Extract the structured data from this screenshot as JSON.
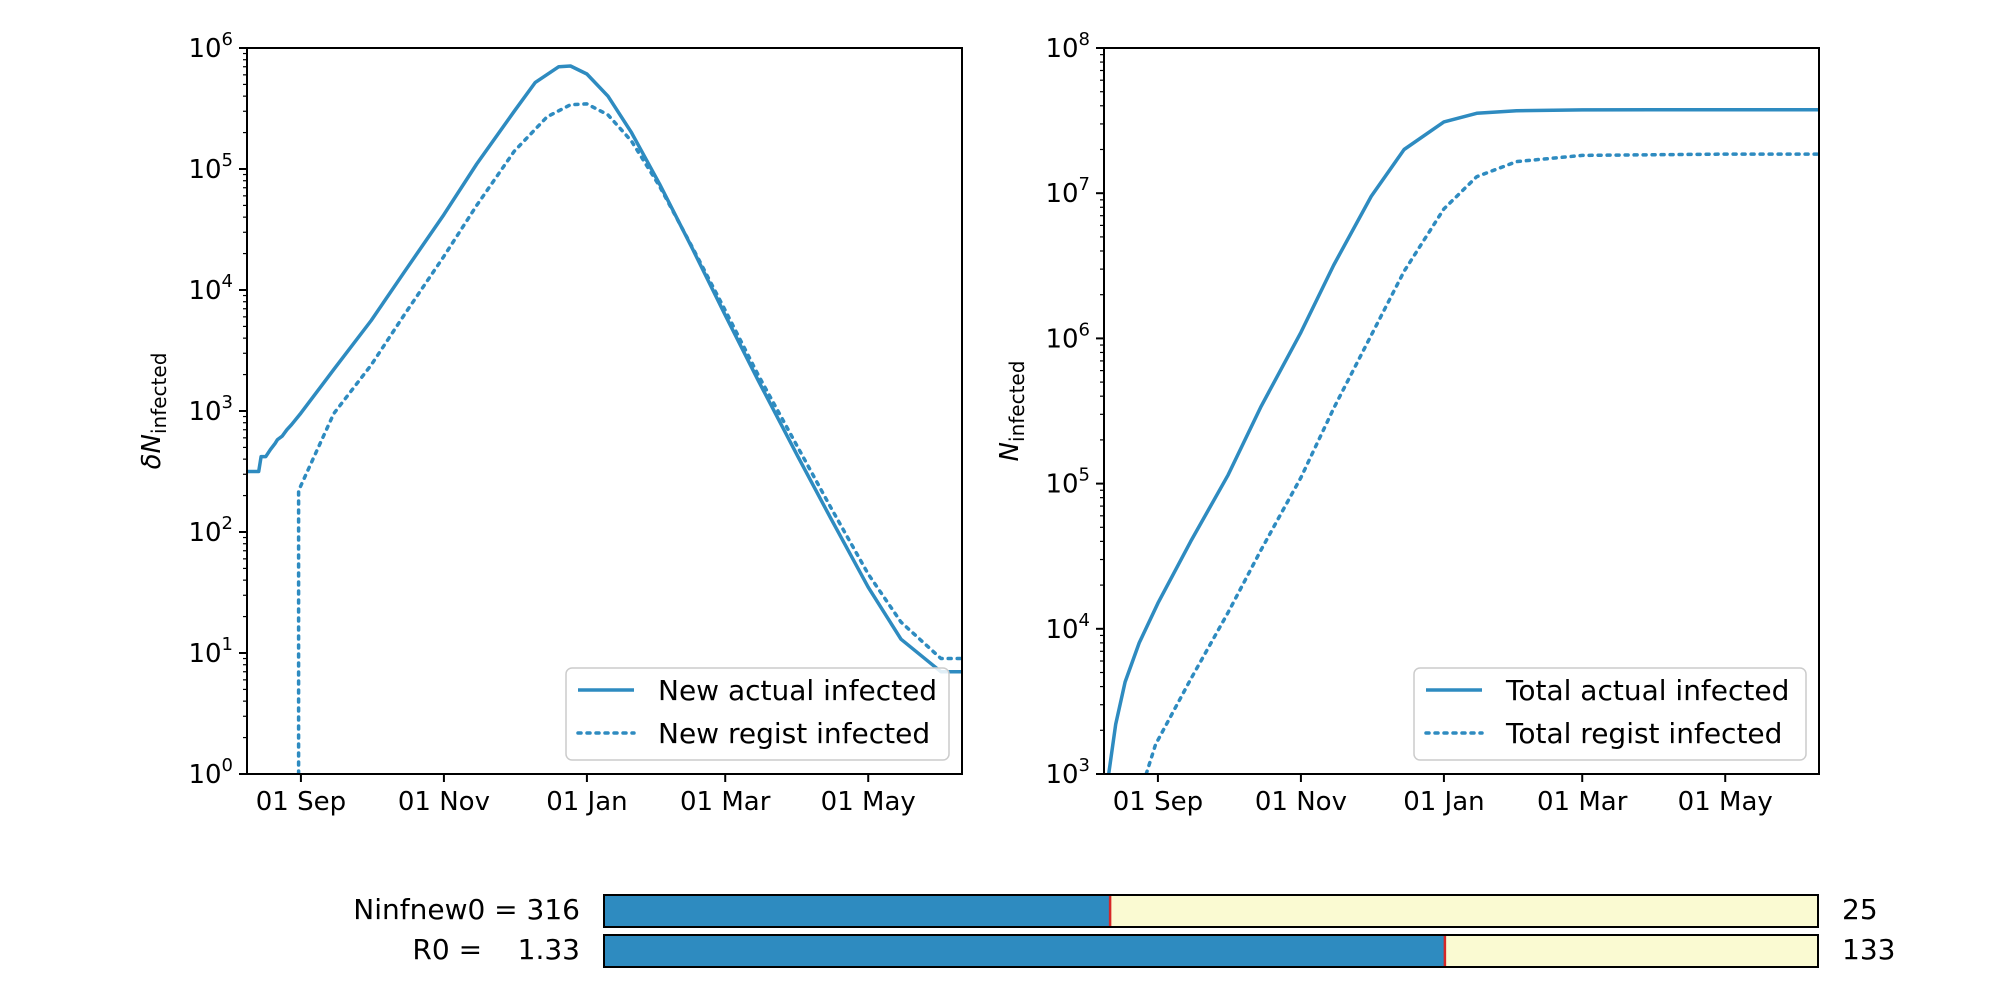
{
  "chart_data": [
    {
      "type": "line",
      "ylabel_main": "δN",
      "ylabel_sub": "infected",
      "yscale": "log",
      "ylim": [
        1,
        1000000
      ],
      "xlim": [
        "2020-08-09",
        "2021-06-10"
      ],
      "y_ticks": [
        {
          "base": "10",
          "exp": "0"
        },
        {
          "base": "10",
          "exp": "1"
        },
        {
          "base": "10",
          "exp": "2"
        },
        {
          "base": "10",
          "exp": "3"
        },
        {
          "base": "10",
          "exp": "4"
        },
        {
          "base": "10",
          "exp": "5"
        },
        {
          "base": "10",
          "exp": "6"
        }
      ],
      "x_ticks": [
        {
          "date": "2020-09-01",
          "label": "01 Sep"
        },
        {
          "date": "2020-11-01",
          "label": "01 Nov"
        },
        {
          "date": "2021-01-01",
          "label": "01 Jan"
        },
        {
          "date": "2021-03-01",
          "label": "01 Mar"
        },
        {
          "date": "2021-05-01",
          "label": "01 May"
        }
      ],
      "grid": false,
      "legend_position": "lower-right",
      "series": [
        {
          "name": "New actual infected",
          "style": "solid",
          "color": "#2e8bc0",
          "points": [
            [
              "2020-08-09",
              316
            ],
            [
              "2020-08-14",
              316
            ],
            [
              "2020-08-15",
              420
            ],
            [
              "2020-08-17",
              420
            ],
            [
              "2020-08-19",
              480
            ],
            [
              "2020-08-21",
              540
            ],
            [
              "2020-08-22",
              580
            ],
            [
              "2020-08-24",
              620
            ],
            [
              "2020-08-26",
              700
            ],
            [
              "2020-08-28",
              770
            ],
            [
              "2020-09-01",
              960
            ],
            [
              "2020-09-15",
              2200
            ],
            [
              "2020-10-01",
              5600
            ],
            [
              "2020-10-15",
              14000
            ],
            [
              "2020-11-01",
              42000
            ],
            [
              "2020-11-15",
              110000
            ],
            [
              "2020-12-01",
              300000
            ],
            [
              "2020-12-10",
              520000
            ],
            [
              "2020-12-20",
              700000
            ],
            [
              "2020-12-25",
              710000
            ],
            [
              "2021-01-01",
              610000
            ],
            [
              "2021-01-10",
              400000
            ],
            [
              "2021-01-20",
              200000
            ],
            [
              "2021-02-01",
              75000
            ],
            [
              "2021-02-15",
              22000
            ],
            [
              "2021-03-01",
              6200
            ],
            [
              "2021-03-15",
              1800
            ],
            [
              "2021-04-01",
              420
            ],
            [
              "2021-04-15",
              130
            ],
            [
              "2021-05-01",
              35
            ],
            [
              "2021-05-15",
              13
            ],
            [
              "2021-06-01",
              7
            ],
            [
              "2021-06-10",
              7
            ]
          ]
        },
        {
          "name": "New regist infected",
          "style": "dotted",
          "color": "#2e8bc0",
          "points": [
            [
              "2020-08-31",
              1
            ],
            [
              "2020-08-31",
              220
            ],
            [
              "2020-09-15",
              950
            ],
            [
              "2020-10-01",
              2400
            ],
            [
              "2020-10-15",
              6200
            ],
            [
              "2020-11-01",
              19000
            ],
            [
              "2020-11-15",
              50000
            ],
            [
              "2020-12-01",
              140000
            ],
            [
              "2020-12-15",
              270000
            ],
            [
              "2020-12-25",
              340000
            ],
            [
              "2021-01-01",
              345000
            ],
            [
              "2021-01-10",
              280000
            ],
            [
              "2021-01-20",
              170000
            ],
            [
              "2021-02-01",
              72000
            ],
            [
              "2021-02-15",
              22500
            ],
            [
              "2021-03-01",
              6800
            ],
            [
              "2021-03-15",
              2000
            ],
            [
              "2021-04-01",
              500
            ],
            [
              "2021-04-15",
              160
            ],
            [
              "2021-05-01",
              45
            ],
            [
              "2021-05-15",
              18
            ],
            [
              "2021-06-01",
              9
            ],
            [
              "2021-06-10",
              9
            ]
          ]
        }
      ]
    },
    {
      "type": "line",
      "ylabel_main": "N",
      "ylabel_sub": "infected",
      "yscale": "log",
      "ylim": [
        1000,
        100000000
      ],
      "xlim": [
        "2020-08-09",
        "2021-06-10"
      ],
      "y_ticks": [
        {
          "base": "10",
          "exp": "3"
        },
        {
          "base": "10",
          "exp": "4"
        },
        {
          "base": "10",
          "exp": "5"
        },
        {
          "base": "10",
          "exp": "6"
        },
        {
          "base": "10",
          "exp": "7"
        },
        {
          "base": "10",
          "exp": "8"
        }
      ],
      "x_ticks": [
        {
          "date": "2020-09-01",
          "label": "01 Sep"
        },
        {
          "date": "2020-11-01",
          "label": "01 Nov"
        },
        {
          "date": "2021-01-01",
          "label": "01 Jan"
        },
        {
          "date": "2021-03-01",
          "label": "01 Mar"
        },
        {
          "date": "2021-05-01",
          "label": "01 May"
        }
      ],
      "grid": false,
      "legend_position": "lower-right",
      "series": [
        {
          "name": "Total actual infected",
          "style": "solid",
          "color": "#2e8bc0",
          "points": [
            [
              "2020-08-11",
              1000
            ],
            [
              "2020-08-14",
              2200
            ],
            [
              "2020-08-18",
              4300
            ],
            [
              "2020-08-24",
              8000
            ],
            [
              "2020-09-01",
              15000
            ],
            [
              "2020-09-15",
              40000
            ],
            [
              "2020-10-01",
              115000
            ],
            [
              "2020-10-15",
              340000
            ],
            [
              "2020-11-01",
              1100000
            ],
            [
              "2020-11-15",
              3200000
            ],
            [
              "2020-12-01",
              9500000
            ],
            [
              "2020-12-15",
              20000000
            ],
            [
              "2021-01-01",
              31000000
            ],
            [
              "2021-01-15",
              35500000
            ],
            [
              "2021-02-01",
              37000000
            ],
            [
              "2021-03-01",
              37500000
            ],
            [
              "2021-05-01",
              37600000
            ],
            [
              "2021-06-10",
              37600000
            ]
          ]
        },
        {
          "name": "Total regist infected",
          "style": "dotted",
          "color": "#2e8bc0",
          "points": [
            [
              "2020-08-27",
              1000
            ],
            [
              "2020-08-31",
              1600
            ],
            [
              "2020-09-15",
              4500
            ],
            [
              "2020-10-01",
              13000
            ],
            [
              "2020-10-15",
              35000
            ],
            [
              "2020-11-01",
              110000
            ],
            [
              "2020-11-15",
              330000
            ],
            [
              "2020-12-01",
              1050000
            ],
            [
              "2020-12-15",
              2900000
            ],
            [
              "2021-01-01",
              7800000
            ],
            [
              "2021-01-15",
              13000000
            ],
            [
              "2021-02-01",
              16500000
            ],
            [
              "2021-03-01",
              18200000
            ],
            [
              "2021-05-01",
              18600000
            ],
            [
              "2021-06-10",
              18600000
            ]
          ]
        }
      ]
    }
  ],
  "sliders": [
    {
      "label": "Ninfnew0 = 316",
      "value": 316,
      "min": 0,
      "max": 758,
      "max_label": "25",
      "fill_color": "#2e8bc0",
      "track_color": "#fafad2",
      "marker_color": "#d62728"
    },
    {
      "label": "R0 =    1.33",
      "value": 1.33,
      "min": 0,
      "max": 1.92,
      "max_label": "133",
      "fill_color": "#2e8bc0",
      "track_color": "#fafad2",
      "marker_color": "#d62728"
    }
  ]
}
